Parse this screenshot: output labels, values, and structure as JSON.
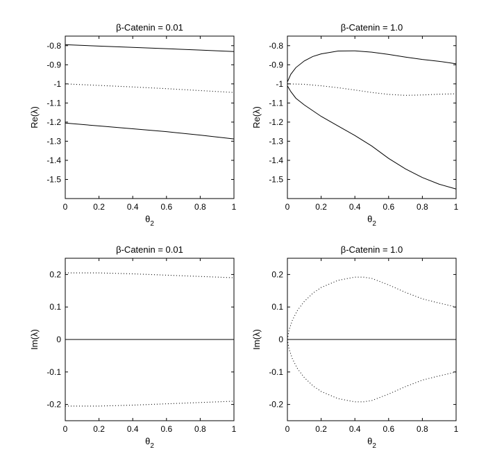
{
  "chart_data": [
    {
      "type": "line",
      "title": "β-Catenin = 0.01",
      "xlabel": "θ2",
      "ylabel": "Re(λ)",
      "xlim": [
        0,
        1
      ],
      "ylim": [
        -1.6,
        -0.75
      ],
      "xticks": [
        "0",
        "0.2",
        "0.4",
        "0.6",
        "0.8",
        "1"
      ],
      "yticks": [
        "-0.8",
        "-0.9",
        "-1",
        "-1.1",
        "-1.2",
        "-1.3",
        "-1.4",
        "-1.5"
      ],
      "grid": false,
      "series": [
        {
          "style": "solid",
          "x": [
            0,
            0.2,
            0.4,
            0.6,
            0.8,
            1.0
          ],
          "y": [
            -0.795,
            -0.802,
            -0.809,
            -0.816,
            -0.823,
            -0.831
          ]
        },
        {
          "style": "dotted",
          "x": [
            0,
            0.2,
            0.4,
            0.6,
            0.8,
            1.0
          ],
          "y": [
            -1.0,
            -1.008,
            -1.016,
            -1.025,
            -1.035,
            -1.045
          ]
        },
        {
          "style": "solid",
          "x": [
            0,
            0.2,
            0.4,
            0.6,
            0.8,
            1.0
          ],
          "y": [
            -1.205,
            -1.22,
            -1.235,
            -1.25,
            -1.268,
            -1.288
          ]
        }
      ]
    },
    {
      "type": "line",
      "title": "β-Catenin = 1.0",
      "xlabel": "θ2",
      "ylabel": "Re(λ)",
      "xlim": [
        0,
        1
      ],
      "ylim": [
        -1.6,
        -0.75
      ],
      "xticks": [
        "0",
        "0.2",
        "0.4",
        "0.6",
        "0.8",
        "1"
      ],
      "yticks": [
        "-0.8",
        "-0.9",
        "-1",
        "-1.1",
        "-1.2",
        "-1.3",
        "-1.4",
        "-1.5"
      ],
      "grid": false,
      "series": [
        {
          "style": "solid",
          "x": [
            0,
            0.02,
            0.05,
            0.1,
            0.15,
            0.2,
            0.3,
            0.4,
            0.5,
            0.6,
            0.7,
            0.8,
            0.9,
            1.0
          ],
          "y": [
            -0.99,
            -0.95,
            -0.915,
            -0.88,
            -0.857,
            -0.843,
            -0.828,
            -0.827,
            -0.834,
            -0.846,
            -0.86,
            -0.872,
            -0.882,
            -0.895
          ]
        },
        {
          "style": "dotted",
          "x": [
            0,
            0.1,
            0.2,
            0.3,
            0.4,
            0.5,
            0.6,
            0.7,
            0.8,
            0.9,
            1.0
          ],
          "y": [
            -1.0,
            -1.002,
            -1.01,
            -1.02,
            -1.032,
            -1.045,
            -1.055,
            -1.06,
            -1.058,
            -1.054,
            -1.052
          ]
        },
        {
          "style": "solid",
          "x": [
            0,
            0.02,
            0.05,
            0.1,
            0.2,
            0.3,
            0.4,
            0.5,
            0.6,
            0.7,
            0.8,
            0.9,
            1.0
          ],
          "y": [
            -1.01,
            -1.04,
            -1.075,
            -1.11,
            -1.17,
            -1.22,
            -1.27,
            -1.325,
            -1.39,
            -1.445,
            -1.49,
            -1.525,
            -1.55
          ]
        }
      ]
    },
    {
      "type": "line",
      "title": "β-Catenin = 0.01",
      "xlabel": "θ2",
      "ylabel": "Im(λ)",
      "xlim": [
        0,
        1
      ],
      "ylim": [
        -0.25,
        0.25
      ],
      "xticks": [
        "0",
        "0.2",
        "0.4",
        "0.6",
        "0.8",
        "1"
      ],
      "yticks": [
        "0.2",
        "0.1",
        "0",
        "-0.1",
        "-0.2"
      ],
      "grid": false,
      "series": [
        {
          "style": "dotted",
          "x": [
            0,
            0.2,
            0.4,
            0.6,
            0.8,
            1.0
          ],
          "y": [
            0.205,
            0.205,
            0.202,
            0.198,
            0.194,
            0.19
          ]
        },
        {
          "style": "solid",
          "x": [
            0,
            1.0
          ],
          "y": [
            0,
            0
          ]
        },
        {
          "style": "dotted",
          "x": [
            0,
            0.2,
            0.4,
            0.6,
            0.8,
            1.0
          ],
          "y": [
            -0.205,
            -0.205,
            -0.202,
            -0.198,
            -0.194,
            -0.19
          ]
        }
      ]
    },
    {
      "type": "line",
      "title": "β-Catenin = 1.0",
      "xlabel": "θ2",
      "ylabel": "Im(λ)",
      "xlim": [
        0,
        1
      ],
      "ylim": [
        -0.25,
        0.25
      ],
      "xticks": [
        "0",
        "0.2",
        "0.4",
        "0.6",
        "0.8",
        "1"
      ],
      "yticks": [
        "0.2",
        "0.1",
        "0",
        "-0.1",
        "-0.2"
      ],
      "grid": false,
      "series": [
        {
          "style": "dotted",
          "x": [
            0,
            0.01,
            0.03,
            0.06,
            0.1,
            0.15,
            0.2,
            0.3,
            0.4,
            0.45,
            0.5,
            0.6,
            0.7,
            0.8,
            0.9,
            1.0
          ],
          "y": [
            0,
            0.03,
            0.06,
            0.09,
            0.117,
            0.142,
            0.16,
            0.182,
            0.192,
            0.192,
            0.188,
            0.168,
            0.145,
            0.125,
            0.112,
            0.1
          ]
        },
        {
          "style": "solid",
          "x": [
            0,
            1.0
          ],
          "y": [
            0,
            0
          ]
        },
        {
          "style": "dotted",
          "x": [
            0,
            0.01,
            0.03,
            0.06,
            0.1,
            0.15,
            0.2,
            0.3,
            0.4,
            0.45,
            0.5,
            0.6,
            0.7,
            0.8,
            0.9,
            1.0
          ],
          "y": [
            0,
            -0.03,
            -0.06,
            -0.09,
            -0.117,
            -0.142,
            -0.16,
            -0.182,
            -0.192,
            -0.192,
            -0.188,
            -0.168,
            -0.145,
            -0.125,
            -0.112,
            -0.1
          ]
        }
      ]
    }
  ]
}
